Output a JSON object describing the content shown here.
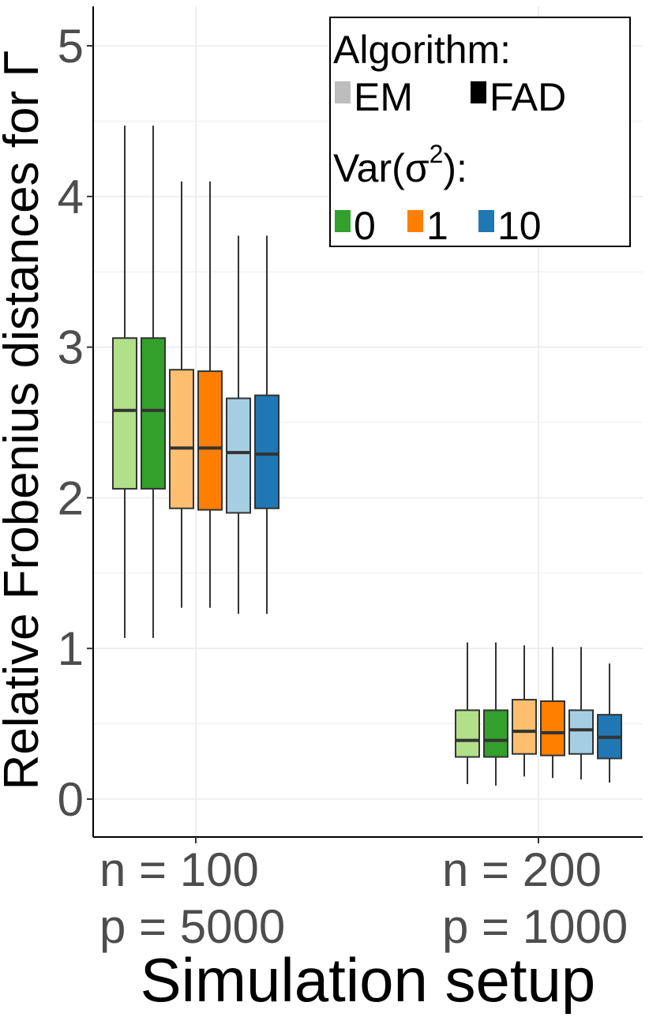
{
  "chart_data": {
    "type": "boxplot",
    "xlabel": "Simulation setup",
    "ylabel": "Relative Frobenius distances for Γ",
    "ylim": [
      -0.25,
      5.25
    ],
    "yticks": [
      "0",
      "1",
      "2",
      "3",
      "4",
      "5"
    ],
    "grid": true,
    "legend_position": "top-right",
    "categories": [
      {
        "line1": "n = 100",
        "line2": "p = 5000"
      },
      {
        "line1": "n = 200",
        "line2": "p = 1000"
      }
    ],
    "legend": {
      "algorithm_title": "Algorithm:",
      "algorithm_items": [
        {
          "label": "EM",
          "color": "#bdbdbd"
        },
        {
          "label": "FAD",
          "color": "#000000"
        }
      ],
      "var_title_prefix": "Var(σ",
      "var_title_sup": "2",
      "var_title_suffix": "):",
      "var_items": [
        {
          "label": "0",
          "color": "#33a02c"
        },
        {
          "label": "1",
          "color": "#ff7f00"
        },
        {
          "label": "10",
          "color": "#1f78b4"
        }
      ]
    },
    "series": [
      {
        "algorithm": "EM",
        "var": "0",
        "color": "#b2df8a",
        "stats": [
          {
            "min": 1.07,
            "q1": 2.06,
            "median": 2.58,
            "q3": 3.06,
            "max": 4.47
          },
          {
            "min": 0.1,
            "q1": 0.28,
            "median": 0.39,
            "q3": 0.59,
            "max": 1.04
          }
        ]
      },
      {
        "algorithm": "FAD",
        "var": "0",
        "color": "#33a02c",
        "stats": [
          {
            "min": 1.07,
            "q1": 2.06,
            "median": 2.58,
            "q3": 3.06,
            "max": 4.47
          },
          {
            "min": 0.09,
            "q1": 0.28,
            "median": 0.39,
            "q3": 0.59,
            "max": 1.04
          }
        ]
      },
      {
        "algorithm": "EM",
        "var": "1",
        "color": "#fdbf6f",
        "stats": [
          {
            "min": 1.27,
            "q1": 1.93,
            "median": 2.33,
            "q3": 2.85,
            "max": 4.1
          },
          {
            "min": 0.15,
            "q1": 0.3,
            "median": 0.45,
            "q3": 0.66,
            "max": 1.02
          }
        ]
      },
      {
        "algorithm": "FAD",
        "var": "1",
        "color": "#ff7f00",
        "stats": [
          {
            "min": 1.27,
            "q1": 1.92,
            "median": 2.33,
            "q3": 2.84,
            "max": 4.1
          },
          {
            "min": 0.14,
            "q1": 0.29,
            "median": 0.44,
            "q3": 0.65,
            "max": 1.01
          }
        ]
      },
      {
        "algorithm": "EM",
        "var": "10",
        "color": "#a6cee3",
        "stats": [
          {
            "min": 1.23,
            "q1": 1.9,
            "median": 2.3,
            "q3": 2.66,
            "max": 3.74
          },
          {
            "min": 0.13,
            "q1": 0.3,
            "median": 0.46,
            "q3": 0.59,
            "max": 1.01
          }
        ]
      },
      {
        "algorithm": "FAD",
        "var": "10",
        "color": "#1f78b4",
        "stats": [
          {
            "min": 1.23,
            "q1": 1.93,
            "median": 2.29,
            "q3": 2.68,
            "max": 3.74
          },
          {
            "min": 0.11,
            "q1": 0.27,
            "median": 0.41,
            "q3": 0.56,
            "max": 0.9
          }
        ]
      }
    ]
  }
}
